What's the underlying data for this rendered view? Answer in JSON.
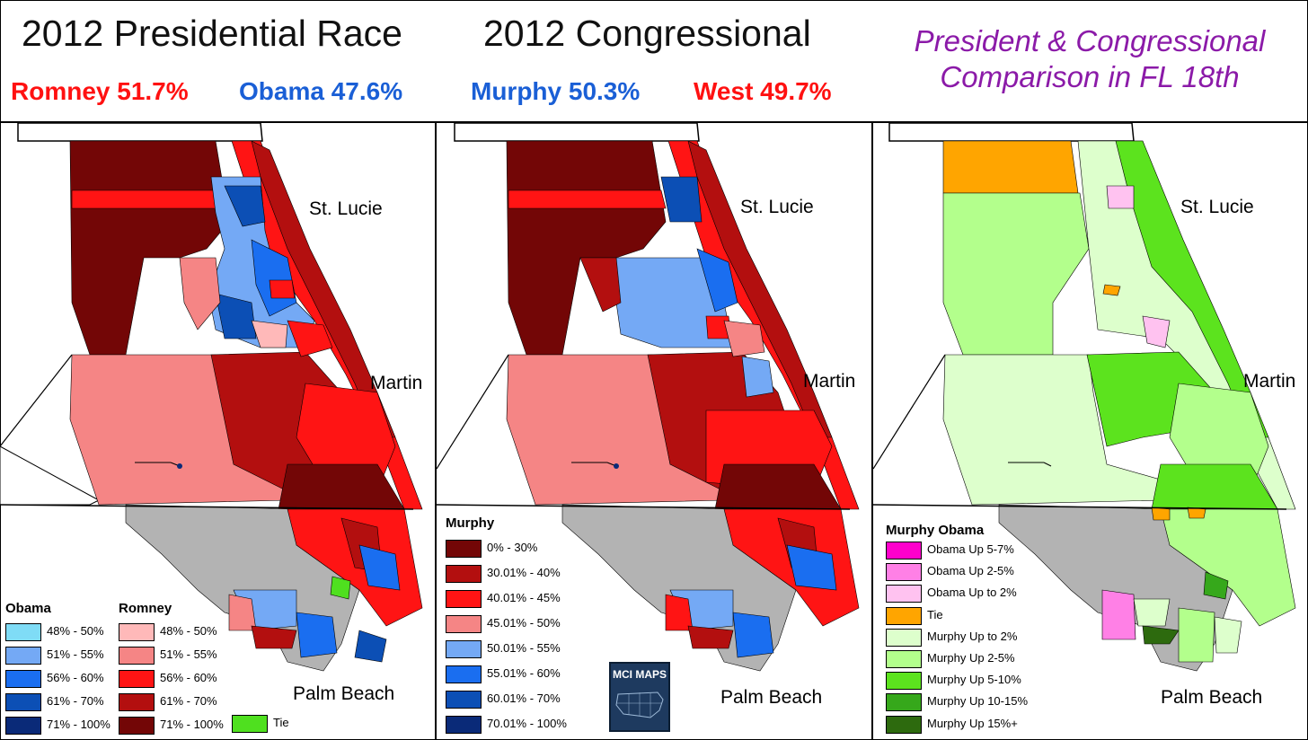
{
  "header": {
    "pres_title": "2012 Presidential Race",
    "cong_title": "2012 Congressional",
    "compare_title_line1": "President & Congressional",
    "compare_title_line2": "Comparison in FL 18th",
    "romney": "Romney  51.7%",
    "obama": "Obama  47.6%",
    "murphy": "Murphy  50.3%",
    "west": "West  49.7%"
  },
  "counties": {
    "st_lucie": "St. Lucie",
    "martin": "Martin",
    "palm_beach": "Palm Beach"
  },
  "legend_pres": {
    "obama_title": "Obama",
    "romney_title": "Romney",
    "obama": [
      {
        "label": "48% - 50%",
        "color": "#7fdcf6"
      },
      {
        "label": "51% - 55%",
        "color": "#74a9f5"
      },
      {
        "label": "56% - 60%",
        "color": "#1a6ef0"
      },
      {
        "label": "61% - 70%",
        "color": "#0c4fb5"
      },
      {
        "label": "71% - 100%",
        "color": "#0a2a78"
      }
    ],
    "romney": [
      {
        "label": "48% - 50%",
        "color": "#ffb9b9"
      },
      {
        "label": "51% - 55%",
        "color": "#f58585"
      },
      {
        "label": "56% - 60%",
        "color": "#ff1414"
      },
      {
        "label": "61% - 70%",
        "color": "#b30f0f"
      },
      {
        "label": "71% - 100%",
        "color": "#730606"
      }
    ],
    "tie": {
      "label": "Tie",
      "color": "#4fe01f"
    }
  },
  "legend_cong": {
    "title": "Murphy",
    "items": [
      {
        "label": "0% - 30%",
        "color": "#730606"
      },
      {
        "label": "30.01% - 40%",
        "color": "#b30f0f"
      },
      {
        "label": "40.01% - 45%",
        "color": "#ff1414"
      },
      {
        "label": "45.01% - 50%",
        "color": "#f58585"
      },
      {
        "label": "50.01% - 55%",
        "color": "#74a9f5"
      },
      {
        "label": "55.01% - 60%",
        "color": "#1a6ef0"
      },
      {
        "label": "60.01% - 70%",
        "color": "#0c4fb5"
      },
      {
        "label": "70.01% - 100%",
        "color": "#0a2a78"
      }
    ]
  },
  "legend_cmp": {
    "title": "Murphy Obama",
    "items": [
      {
        "label": "Obama Up 5-7%",
        "color": "#ff00cc"
      },
      {
        "label": "Obama Up 2-5%",
        "color": "#ff80e6"
      },
      {
        "label": "Obama Up to 2%",
        "color": "#ffc2f0"
      },
      {
        "label": "Tie",
        "color": "#ffa500"
      },
      {
        "label": "Murphy Up to 2%",
        "color": "#ddffcc"
      },
      {
        "label": "Murphy Up 2-5%",
        "color": "#b3ff8c"
      },
      {
        "label": "Murphy Up 5-10%",
        "color": "#5ce31e"
      },
      {
        "label": "Murphy Up 10-15%",
        "color": "#36a81b"
      },
      {
        "label": "Murphy Up 15%+",
        "color": "#2d6a0e"
      }
    ]
  },
  "logo": {
    "text": "MCI MAPS"
  },
  "colors": {
    "romney_red": "#ff1111",
    "obama_blue": "#1a5fd6",
    "compare_purple": "#8b1aa8",
    "gray": "#b3b3b3"
  }
}
